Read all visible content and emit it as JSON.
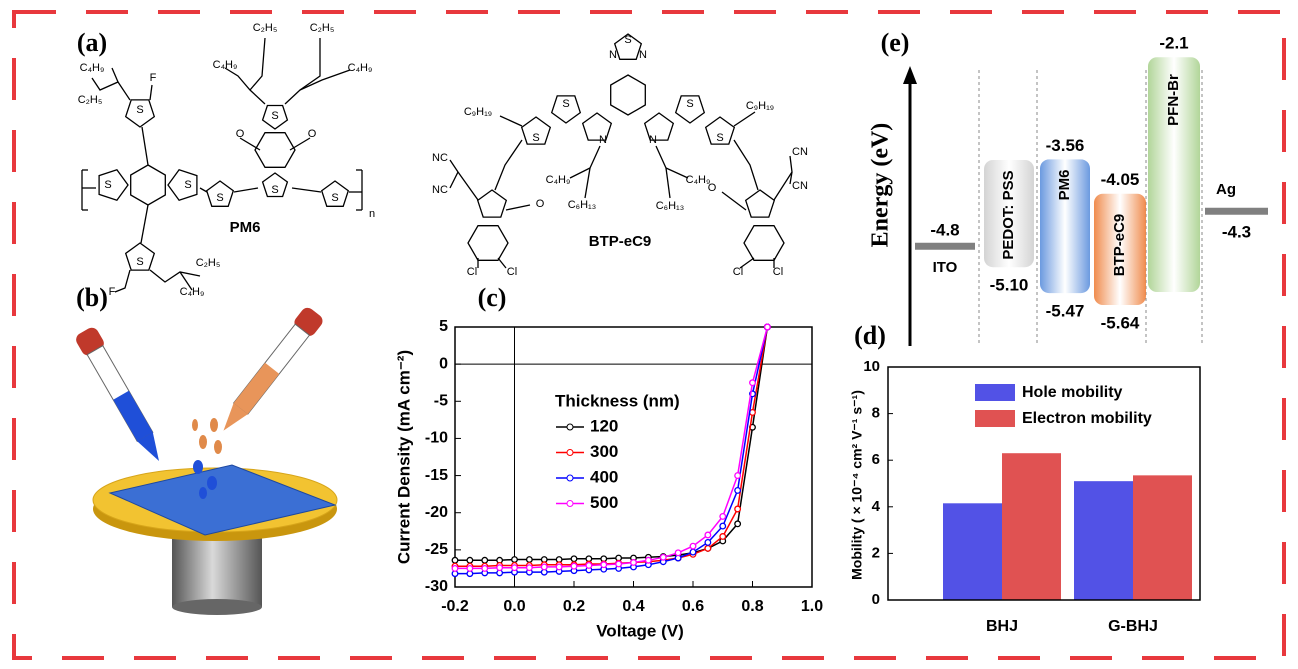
{
  "panel_labels": [
    "(a)",
    "(b)",
    "(c)",
    "(d)",
    "(e)"
  ],
  "structures": [
    {
      "name": "PM6",
      "atoms": [
        "C₄H₉",
        "C₂H₅",
        "F",
        "S",
        "S",
        "S",
        "S",
        "F",
        "C₂H₅",
        "C₄H₉",
        "S",
        "C₄H₉",
        "C₂H₅",
        "C₂H₅",
        "C₄H₉",
        "S",
        "O",
        "O",
        "S",
        "S",
        "n"
      ]
    },
    {
      "name": "BTP-eC9",
      "atoms": [
        "N",
        "S",
        "N",
        "N",
        "N",
        "S",
        "S",
        "S",
        "S",
        "C₉H₁₉",
        "C₉H₁₉",
        "NC",
        "NC",
        "CN",
        "CN",
        "O",
        "O",
        "C₄H₉",
        "C₆H₁₃",
        "C₄H₉",
        "C₆H₁₃",
        "Cl",
        "Cl",
        "Cl",
        "Cl"
      ]
    }
  ],
  "chart_data": [
    {
      "type": "line",
      "xlabel": "Voltage (V)",
      "ylabel": "Current Density (mA cm⁻²)",
      "legend_title": "Thickness (nm)",
      "x": [
        -0.2,
        -0.15,
        -0.1,
        -0.05,
        0,
        0.05,
        0.1,
        0.15,
        0.2,
        0.25,
        0.3,
        0.35,
        0.4,
        0.45,
        0.5,
        0.55,
        0.6,
        0.65,
        0.7,
        0.75,
        0.8,
        0.85
      ],
      "series": [
        {
          "name": "120",
          "color": "#000000",
          "values": [
            -26.4,
            -26.4,
            -26.4,
            -26.4,
            -26.3,
            -26.3,
            -26.3,
            -26.3,
            -26.2,
            -26.2,
            -26.2,
            -26.1,
            -26.1,
            -26.0,
            -25.9,
            -25.7,
            -25.4,
            -24.8,
            -23.8,
            -21.5,
            -8.5,
            5
          ]
        },
        {
          "name": "300",
          "color": "#ff0000",
          "values": [
            -27.2,
            -27.2,
            -27.2,
            -27.1,
            -27.1,
            -27.1,
            -27.0,
            -27.0,
            -27.0,
            -26.9,
            -26.9,
            -26.8,
            -26.7,
            -26.6,
            -26.4,
            -26.1,
            -25.6,
            -24.8,
            -23.2,
            -19.5,
            -6.5,
            5
          ]
        },
        {
          "name": "400",
          "color": "#0000ff",
          "values": [
            -28.2,
            -28.2,
            -28.1,
            -28.1,
            -28.0,
            -28.0,
            -28.0,
            -27.9,
            -27.8,
            -27.7,
            -27.6,
            -27.5,
            -27.3,
            -27.0,
            -26.6,
            -26.1,
            -25.3,
            -24.0,
            -21.8,
            -17.0,
            -4.0,
            5
          ]
        },
        {
          "name": "500",
          "color": "#ff00ff",
          "values": [
            -27.5,
            -27.5,
            -27.5,
            -27.4,
            -27.4,
            -27.4,
            -27.3,
            -27.3,
            -27.2,
            -27.1,
            -27.0,
            -26.9,
            -26.7,
            -26.4,
            -26.0,
            -25.4,
            -24.5,
            -23.0,
            -20.5,
            -15.0,
            -2.5,
            5
          ]
        }
      ],
      "xlim": [
        -0.2,
        1.0
      ],
      "xticks": [
        -0.2,
        {
          "value": 0,
          "label": "0.0"
        },
        0.2,
        0.4,
        0.6,
        0.8,
        {
          "value": 1,
          "label": "1.0"
        }
      ],
      "ylim": [
        -30,
        5
      ],
      "yticks": [
        -30,
        -25,
        -20,
        -15,
        -10,
        -5,
        0,
        5
      ],
      "zero_lines": true
    },
    {
      "type": "bar",
      "ylabel": "Mobility ( × 10⁻⁴ cm² V⁻¹ s⁻¹)",
      "categories": [
        "BHJ",
        "G-BHJ"
      ],
      "series": [
        {
          "name": "Hole mobility",
          "color": "#5252e6",
          "values": [
            4.15,
            5.1
          ]
        },
        {
          "name": "Electron mobility",
          "color": "#e05252",
          "values": [
            6.3,
            5.35
          ]
        }
      ],
      "ylim": [
        0,
        10
      ],
      "yticks": [
        0,
        2,
        4,
        6,
        8,
        10
      ]
    },
    {
      "type": "energy-level",
      "ylabel": "Energy (eV)",
      "layers": [
        {
          "name": "ITO",
          "kind": "line",
          "color": "#808080",
          "values": [
            -4.8
          ]
        },
        {
          "name": "PEDOT: PSS",
          "kind": "box",
          "color": "#cfcfcf",
          "values": [
            -5.1
          ],
          "value_labels": [
            "-5.10"
          ]
        },
        {
          "name": "PM6",
          "kind": "box",
          "color": "#5b8fdc",
          "values": [
            -3.56,
            -5.47
          ]
        },
        {
          "name": "BTP-eC9",
          "kind": "box",
          "color": "#ee7f3a",
          "values": [
            -4.05,
            -5.64
          ]
        },
        {
          "name": "PFN-Br",
          "kind": "box",
          "color": "#a9d18e",
          "values": [
            -2.1
          ]
        },
        {
          "name": "Ag",
          "kind": "line",
          "color": "#808080",
          "values": [
            -4.3
          ]
        }
      ]
    }
  ]
}
